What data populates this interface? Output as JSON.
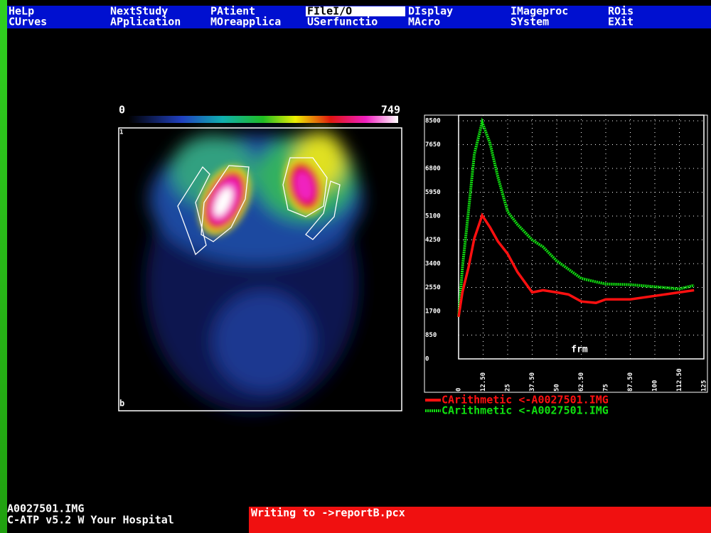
{
  "menu": {
    "rows": [
      [
        "HeLp",
        "NextStudy",
        "PAtient",
        "FIleI/O",
        "DIsplay",
        "IMageproc",
        "ROis"
      ],
      [
        "CUrves",
        "APplication",
        "MOreapplica",
        "USerfunctio",
        "MAcro",
        "SYstem",
        "EXit"
      ]
    ],
    "active": [
      0,
      3
    ]
  },
  "image": {
    "scale_min": "0",
    "scale_max": "749",
    "corner_top": "1",
    "corner_bottom": "b"
  },
  "chart_data": {
    "type": "line",
    "x_label": "frm",
    "x": [
      0,
      2,
      5,
      8,
      12,
      16,
      20,
      25,
      30,
      37.5,
      43,
      50,
      56,
      62.5,
      70,
      75,
      87.5,
      100,
      112.5,
      120
    ],
    "series": [
      {
        "name": "CArithmetic  <-A0027501.IMG",
        "color": "#ff1010",
        "values": [
          1500,
          2400,
          3250,
          4300,
          5125,
          4700,
          4200,
          3750,
          3100,
          2375,
          2450,
          2375,
          2300,
          2050,
          2000,
          2125,
          2125,
          2250,
          2375,
          2450
        ]
      },
      {
        "name": "CArithmetic  <-A0027501.IMG",
        "color": "#10e010",
        "values": [
          1500,
          3300,
          5250,
          7300,
          8450,
          7700,
          6500,
          5250,
          4800,
          4250,
          4000,
          3500,
          3200,
          2875,
          2750,
          2675,
          2650,
          2575,
          2500,
          2625
        ]
      }
    ],
    "xlim": [
      0,
      125
    ],
    "ylim": [
      0,
      8500
    ],
    "xticks": [
      0,
      {
        "value": 12.5,
        "label": "12.50"
      },
      25,
      {
        "value": 37.5,
        "label": "37.50"
      },
      50,
      {
        "value": 62.5,
        "label": "62.50"
      },
      75,
      {
        "value": 87.5,
        "label": "87.50"
      },
      100,
      {
        "value": 112.5,
        "label": "112.50"
      },
      125
    ],
    "yticks": [
      0,
      850,
      1700,
      2550,
      3400,
      4250,
      5100,
      5950,
      6800,
      7650,
      8500
    ],
    "grid": true
  },
  "status": {
    "file": "A0027501.IMG",
    "app": "C-ATP v5.2 W Your Hospital",
    "cursor": "_",
    "message": "Writing to ->reportB.pcx"
  }
}
